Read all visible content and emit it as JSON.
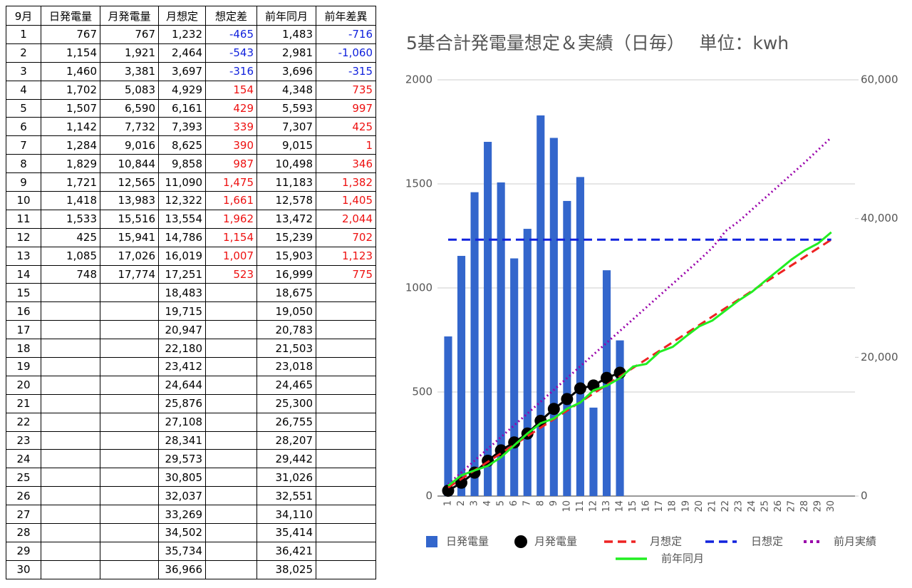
{
  "table": {
    "header": [
      "9月",
      "日発電量",
      "月発電量",
      "月想定",
      "想定差",
      "前年同月",
      "前年差異"
    ],
    "rows": [
      [
        "1",
        "767",
        "767",
        "1,232",
        "-465",
        "1,483",
        "-716"
      ],
      [
        "2",
        "1,154",
        "1,921",
        "2,464",
        "-543",
        "2,981",
        "-1,060"
      ],
      [
        "3",
        "1,460",
        "3,381",
        "3,697",
        "-316",
        "3,696",
        "-315"
      ],
      [
        "4",
        "1,702",
        "5,083",
        "4,929",
        "154",
        "4,348",
        "735"
      ],
      [
        "5",
        "1,507",
        "6,590",
        "6,161",
        "429",
        "5,593",
        "997"
      ],
      [
        "6",
        "1,142",
        "7,732",
        "7,393",
        "339",
        "7,307",
        "425"
      ],
      [
        "7",
        "1,284",
        "9,016",
        "8,625",
        "390",
        "9,015",
        "1"
      ],
      [
        "8",
        "1,829",
        "10,844",
        "9,858",
        "987",
        "10,498",
        "346"
      ],
      [
        "9",
        "1,721",
        "12,565",
        "11,090",
        "1,475",
        "11,183",
        "1,382"
      ],
      [
        "10",
        "1,418",
        "13,983",
        "12,322",
        "1,661",
        "12,578",
        "1,405"
      ],
      [
        "11",
        "1,533",
        "15,516",
        "13,554",
        "1,962",
        "13,472",
        "2,044"
      ],
      [
        "12",
        "425",
        "15,941",
        "14,786",
        "1,154",
        "15,239",
        "702"
      ],
      [
        "13",
        "1,085",
        "17,026",
        "16,019",
        "1,007",
        "15,903",
        "1,123"
      ],
      [
        "14",
        "748",
        "17,774",
        "17,251",
        "523",
        "16,999",
        "775"
      ],
      [
        "15",
        null,
        null,
        "18,483",
        null,
        "18,675",
        null
      ],
      [
        "16",
        null,
        null,
        "19,715",
        null,
        "19,050",
        null
      ],
      [
        "17",
        null,
        null,
        "20,947",
        null,
        "20,783",
        null
      ],
      [
        "18",
        null,
        null,
        "22,180",
        null,
        "21,503",
        null
      ],
      [
        "19",
        null,
        null,
        "23,412",
        null,
        "23,018",
        null
      ],
      [
        "20",
        null,
        null,
        "24,644",
        null,
        "24,465",
        null
      ],
      [
        "21",
        null,
        null,
        "25,876",
        null,
        "25,300",
        null
      ],
      [
        "22",
        null,
        null,
        "27,108",
        null,
        "26,755",
        null
      ],
      [
        "23",
        null,
        null,
        "28,341",
        null,
        "28,207",
        null
      ],
      [
        "24",
        null,
        null,
        "29,573",
        null,
        "29,442",
        null
      ],
      [
        "25",
        null,
        null,
        "30,805",
        null,
        "31,026",
        null
      ],
      [
        "26",
        null,
        null,
        "32,037",
        null,
        "32,551",
        null
      ],
      [
        "27",
        null,
        null,
        "33,269",
        null,
        "34,110",
        null
      ],
      [
        "28",
        null,
        null,
        "34,502",
        null,
        "35,414",
        null
      ],
      [
        "29",
        null,
        null,
        "35,734",
        null,
        "36,421",
        null
      ],
      [
        "30",
        null,
        null,
        "36,966",
        null,
        "38,025",
        null
      ]
    ]
  },
  "chart_data": {
    "type": "combo",
    "title": "5基合計発電量想定＆実績（日毎）　 単位：kwh",
    "categories": [
      "1",
      "2",
      "3",
      "4",
      "5",
      "6",
      "7",
      "8",
      "9",
      "10",
      "11",
      "12",
      "13",
      "14",
      "15",
      "16",
      "17",
      "18",
      "19",
      "20",
      "21",
      "22",
      "23",
      "24",
      "25",
      "26",
      "27",
      "28",
      "29",
      "30"
    ],
    "ylim": [
      0,
      2000
    ],
    "yticks": [
      0,
      500,
      1000,
      1500,
      2000
    ],
    "y2lim": [
      0,
      60000
    ],
    "y2ticks": [
      0,
      {
        "value": 20000,
        "label": "20,000"
      },
      {
        "value": 40000,
        "label": "40,000"
      },
      {
        "value": 60000,
        "label": "60,000"
      }
    ],
    "grid": true,
    "series": [
      {
        "name": "日発電量",
        "type": "bar",
        "color": "#3366cc",
        "axis": "y",
        "values": [
          767,
          1154,
          1460,
          1702,
          1507,
          1142,
          1284,
          1829,
          1721,
          1418,
          1533,
          425,
          1085,
          748,
          null,
          null,
          null,
          null,
          null,
          null,
          null,
          null,
          null,
          null,
          null,
          null,
          null,
          null,
          null,
          null
        ]
      },
      {
        "name": "月発電量",
        "type": "line",
        "dash": "solid",
        "marker": true,
        "color": "#000000",
        "axis": "y2",
        "values": [
          767,
          1921,
          3381,
          5083,
          6590,
          7732,
          9016,
          10844,
          12565,
          13983,
          15516,
          15941,
          17026,
          17774,
          null,
          null,
          null,
          null,
          null,
          null,
          null,
          null,
          null,
          null,
          null,
          null,
          null,
          null,
          null,
          null
        ]
      },
      {
        "name": "月想定",
        "type": "line",
        "dash": "dashed",
        "marker": false,
        "color": "#ee2222",
        "axis": "y2",
        "values": [
          1232,
          2464,
          3697,
          4929,
          6161,
          7393,
          8625,
          9858,
          11090,
          12322,
          13554,
          14786,
          16019,
          17251,
          18483,
          19715,
          20947,
          22180,
          23412,
          24644,
          25876,
          27108,
          28341,
          29573,
          30805,
          32037,
          33269,
          34502,
          35734,
          36966
        ]
      },
      {
        "name": "日想定",
        "type": "line",
        "dash": "dashed",
        "marker": false,
        "color": "#1122dd",
        "axis": "y",
        "values": [
          1232,
          1232,
          1232,
          1232,
          1232,
          1232,
          1232,
          1232,
          1232,
          1232,
          1232,
          1232,
          1232,
          1232,
          1232,
          1232,
          1232,
          1232,
          1232,
          1232,
          1232,
          1232,
          1232,
          1232,
          1232,
          1232,
          1232,
          1232,
          1232,
          1232
        ]
      },
      {
        "name": "前月実績",
        "type": "line",
        "dash": "dotted",
        "marker": false,
        "color": "#9900aa",
        "axis": "y2",
        "values": [
          1700,
          3400,
          5100,
          6800,
          8500,
          10200,
          11900,
          13600,
          15300,
          17000,
          18700,
          20400,
          22100,
          23800,
          25500,
          27200,
          28900,
          30600,
          32300,
          34000,
          35800,
          38200,
          39600,
          41300,
          43000,
          44700,
          46400,
          48100,
          49900,
          51700
        ]
      },
      {
        "name": "前年同月",
        "type": "line",
        "dash": "solid",
        "marker": false,
        "color": "#22ee22",
        "axis": "y2",
        "values": [
          1483,
          2981,
          3696,
          4348,
          5593,
          7307,
          9015,
          10498,
          11183,
          12578,
          13472,
          15239,
          15903,
          16999,
          18675,
          19050,
          20783,
          21503,
          23018,
          24465,
          25300,
          26755,
          28207,
          29442,
          31026,
          32551,
          34110,
          35414,
          36421,
          38025
        ]
      }
    ]
  }
}
